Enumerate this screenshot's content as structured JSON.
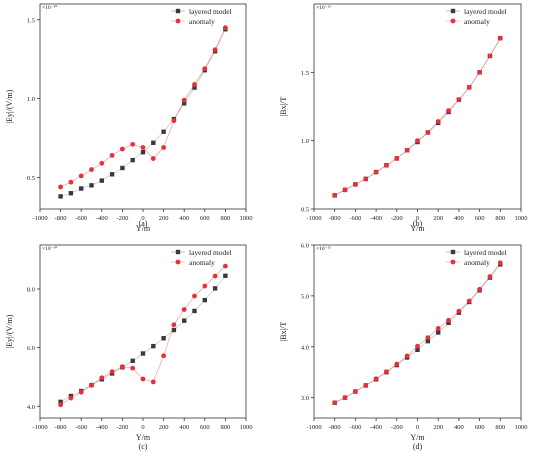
{
  "chart_data": [
    {
      "type": "scatter",
      "panel": "(a)",
      "xlabel": "Y/m",
      "ylabel": "|Ey|/(V/m)",
      "multiplier": "×10⁻¹⁰",
      "xlim": [
        -1000,
        1000
      ],
      "ylim": [
        0.3,
        1.6
      ],
      "xticks": [
        -1000,
        -800,
        -600,
        -400,
        -200,
        0,
        200,
        400,
        600,
        800,
        1000
      ],
      "yticks": [
        "0.5",
        "1.0",
        "1.5"
      ],
      "legend_position": "top-right",
      "x": [
        -800,
        -700,
        -600,
        -500,
        -400,
        -300,
        -200,
        -100,
        0,
        100,
        200,
        300,
        400,
        500,
        600,
        700,
        800
      ],
      "series": [
        {
          "name": "layered model",
          "marker": "square",
          "color": "#3a3a3a",
          "values": [
            0.38,
            0.4,
            0.43,
            0.45,
            0.48,
            0.52,
            0.56,
            0.61,
            0.66,
            0.72,
            0.79,
            0.87,
            0.97,
            1.07,
            1.18,
            1.3,
            1.44
          ]
        },
        {
          "name": "anomaly",
          "marker": "circle",
          "color": "#e8303a",
          "values": [
            0.44,
            0.47,
            0.51,
            0.55,
            0.59,
            0.64,
            0.68,
            0.71,
            0.69,
            0.62,
            0.69,
            0.86,
            0.99,
            1.09,
            1.19,
            1.31,
            1.45
          ]
        }
      ]
    },
    {
      "type": "scatter",
      "panel": "(b)",
      "xlabel": "Y/m",
      "ylabel": "|Bx|/T",
      "multiplier": "×10⁻¹⁵",
      "xlim": [
        -1000,
        1000
      ],
      "ylim": [
        0.5,
        2.0
      ],
      "xticks": [
        -1000,
        -800,
        -600,
        -400,
        -200,
        0,
        200,
        400,
        600,
        800,
        1000
      ],
      "yticks": [
        "0.5",
        "1.0",
        "1.5"
      ],
      "legend_position": "top-right",
      "x": [
        -800,
        -700,
        -600,
        -500,
        -400,
        -300,
        -200,
        -100,
        0,
        100,
        200,
        300,
        400,
        500,
        600,
        700,
        800
      ],
      "series": [
        {
          "name": "layered model",
          "marker": "square",
          "color": "#3a3a3a",
          "values": [
            0.6,
            0.64,
            0.68,
            0.72,
            0.77,
            0.82,
            0.87,
            0.93,
            0.99,
            1.06,
            1.13,
            1.21,
            1.3,
            1.39,
            1.5,
            1.62,
            1.75
          ]
        },
        {
          "name": "anomaly",
          "marker": "circle",
          "color": "#e8303a",
          "values": [
            0.6,
            0.64,
            0.68,
            0.72,
            0.77,
            0.82,
            0.87,
            0.93,
            1.0,
            1.06,
            1.14,
            1.22,
            1.3,
            1.39,
            1.5,
            1.62,
            1.75
          ]
        }
      ]
    },
    {
      "type": "scatter",
      "panel": "(c)",
      "xlabel": "Y/m",
      "ylabel": "|Ey|/(V/m)",
      "multiplier": "×10⁻¹⁰",
      "xlim": [
        -1000,
        1000
      ],
      "ylim": [
        3.6,
        9.5
      ],
      "xticks": [
        -1000,
        -800,
        -600,
        -400,
        -200,
        0,
        200,
        400,
        600,
        800,
        1000
      ],
      "yticks": [
        "4.0",
        "6.0",
        "8.0"
      ],
      "legend_position": "top-right",
      "x": [
        -800,
        -700,
        -600,
        -500,
        -400,
        -300,
        -200,
        -100,
        0,
        100,
        200,
        300,
        400,
        500,
        600,
        700,
        800
      ],
      "series": [
        {
          "name": "layered model",
          "marker": "square",
          "color": "#3a3a3a",
          "values": [
            4.15,
            4.35,
            4.52,
            4.72,
            4.92,
            5.12,
            5.33,
            5.55,
            5.8,
            6.05,
            6.32,
            6.6,
            6.92,
            7.25,
            7.62,
            8.02,
            8.45
          ]
        },
        {
          "name": "anomaly",
          "marker": "circle",
          "color": "#e8303a",
          "values": [
            4.05,
            4.28,
            4.48,
            4.72,
            4.97,
            5.18,
            5.35,
            5.3,
            4.93,
            4.83,
            5.72,
            6.78,
            7.3,
            7.76,
            8.1,
            8.44,
            8.78
          ]
        }
      ]
    },
    {
      "type": "scatter",
      "panel": "(d)",
      "xlabel": "Y/m",
      "ylabel": "|Bx|/T",
      "multiplier": "×10⁻¹⁵",
      "xlim": [
        -1000,
        1000
      ],
      "ylim": [
        2.6,
        6.0
      ],
      "xticks": [
        -1000,
        -800,
        -600,
        -400,
        -200,
        0,
        200,
        400,
        600,
        800,
        1000
      ],
      "yticks": [
        "3.0",
        "4.0",
        "5.0",
        "6.0"
      ],
      "legend_position": "top-right",
      "x": [
        -800,
        -700,
        -600,
        -500,
        -400,
        -300,
        -200,
        -100,
        0,
        100,
        200,
        300,
        400,
        500,
        600,
        700,
        800
      ],
      "series": [
        {
          "name": "layered model",
          "marker": "square",
          "color": "#3a3a3a",
          "values": [
            2.9,
            3.0,
            3.12,
            3.24,
            3.36,
            3.5,
            3.64,
            3.79,
            3.94,
            4.11,
            4.28,
            4.47,
            4.67,
            4.88,
            5.11,
            5.36,
            5.62
          ]
        },
        {
          "name": "anomaly",
          "marker": "circle",
          "color": "#e8303a",
          "values": [
            2.9,
            3.0,
            3.12,
            3.24,
            3.37,
            3.51,
            3.66,
            3.82,
            4.01,
            4.18,
            4.36,
            4.52,
            4.7,
            4.9,
            5.13,
            5.38,
            5.65
          ]
        }
      ]
    }
  ]
}
